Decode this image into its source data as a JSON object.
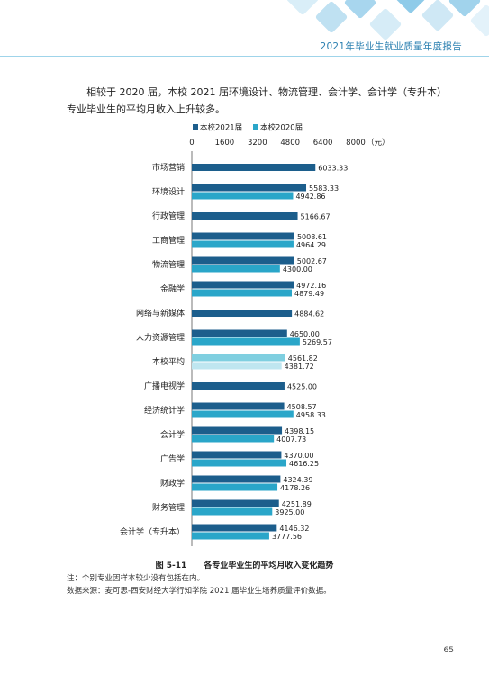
{
  "header": {
    "title": "2021年毕业生就业质量年度报告"
  },
  "intro_text": "相较于 2020 届，本校 2021 届环境设计、物流管理、会计学、会计学（专升本）专业毕业生的平均月收入上升较多。",
  "figure": {
    "number": "图 5-11",
    "caption": "各专业毕业生的平均月收入变化趋势"
  },
  "notes": [
    "注：个别专业因样本较少没有包括在内。",
    "数据来源：麦可思-西安财经大学行知学院 2021 届毕业生培养质量评价数据。"
  ],
  "page_number": "65",
  "chart_data": {
    "type": "bar",
    "orientation": "horizontal",
    "categories": [
      "市场营销",
      "环境设计",
      "行政管理",
      "工商管理",
      "物流管理",
      "金融学",
      "网络与新媒体",
      "人力资源管理",
      "本校平均",
      "广播电视学",
      "经济统计学",
      "会计学",
      "广告学",
      "财政学",
      "财务管理",
      "会计学（专升本）"
    ],
    "series": [
      {
        "name": "本校2021届",
        "color": "#1c5e8c",
        "values": [
          6033.33,
          5583.33,
          5166.67,
          5008.61,
          5002.67,
          4972.16,
          4884.62,
          4650.0,
          4561.82,
          4525.0,
          4508.57,
          4398.15,
          4370.0,
          4324.39,
          4251.89,
          4146.32
        ],
        "labels": [
          "6033.33",
          "5583.33",
          "5166.67",
          "5008.61",
          "5002.67",
          "4972.16",
          "4884.62",
          "4650.00",
          "4561.82",
          "4525.00",
          "4508.57",
          "4398.15",
          "4370.00",
          "4324.39",
          "4251.89",
          "4146.32"
        ]
      },
      {
        "name": "本校2020届",
        "color": "#2aa6c9",
        "values": [
          null,
          4942.86,
          null,
          4964.29,
          4300.0,
          4879.49,
          null,
          5269.57,
          4381.72,
          null,
          4958.33,
          4007.73,
          4616.25,
          4178.26,
          3925.0,
          3777.56
        ],
        "labels": [
          "",
          "4942.86",
          "",
          "4964.29",
          "4300.00",
          "4879.49",
          "",
          "5269.57",
          "4381.72",
          "",
          "4958.33",
          "4007.73",
          "4616.25",
          "4178.26",
          "3925.00",
          "3777.56"
        ]
      }
    ],
    "highlight": {
      "category": "本校平均",
      "colors": [
        "#7fcfe0",
        "#bfe6f0"
      ]
    },
    "x_ticks": [
      "0",
      "1600",
      "3200",
      "4800",
      "6400",
      "8000"
    ],
    "x_unit": "（元）",
    "xlim": [
      0,
      8000
    ],
    "legend_position": "top",
    "axis_position": "top",
    "grid": false
  }
}
